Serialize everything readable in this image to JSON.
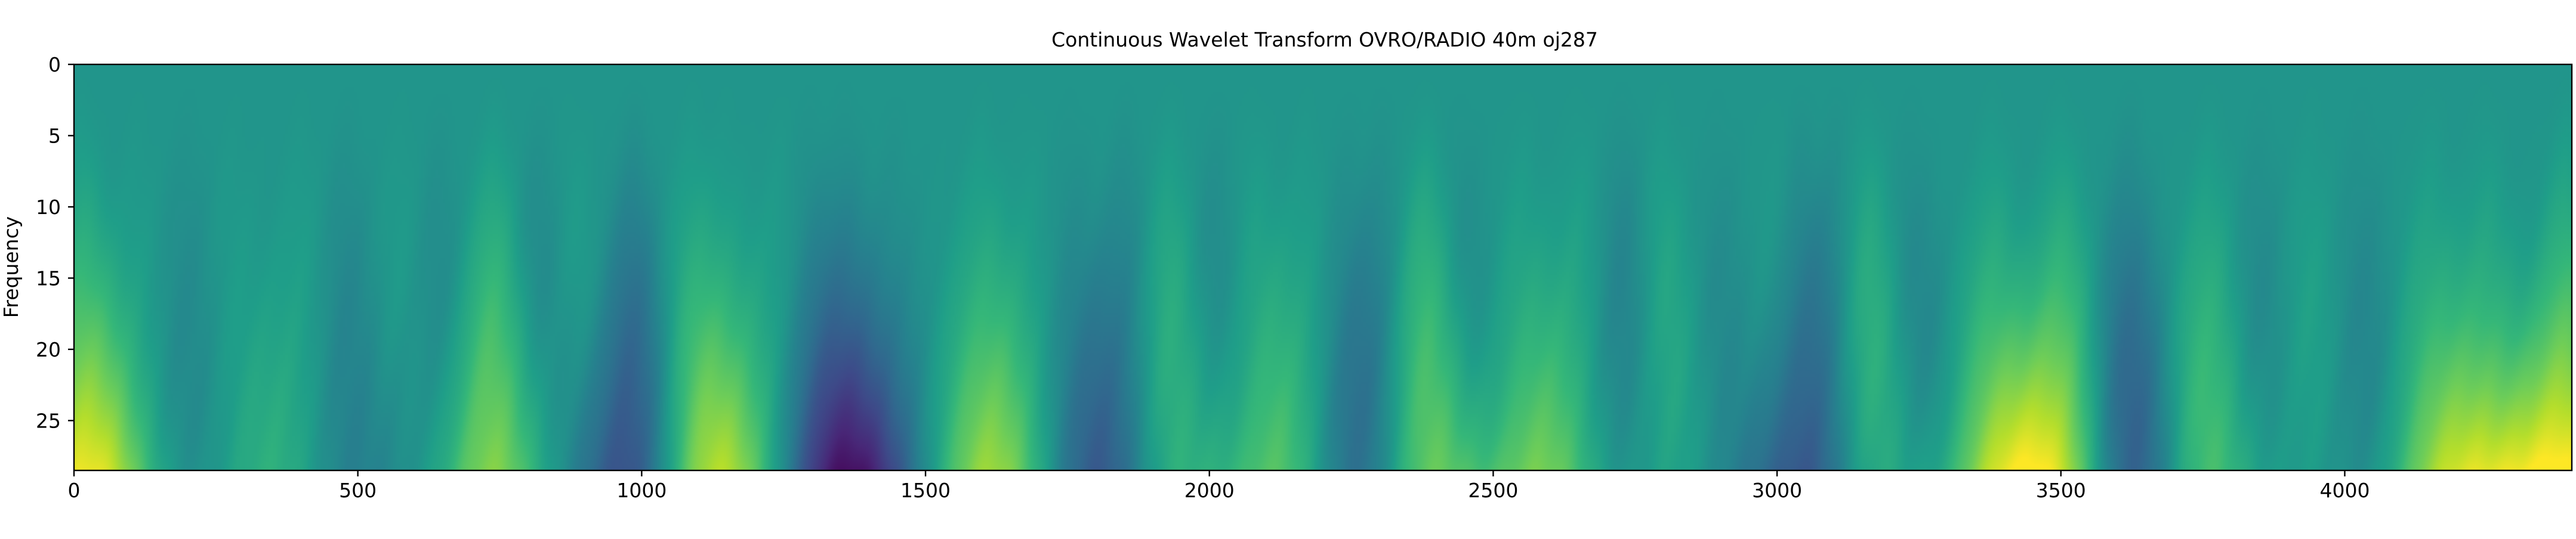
{
  "chart_data": {
    "type": "heatmap",
    "title": "Continuous Wavelet Transform OVRO/RADIO 40m oj287",
    "xlabel": "",
    "ylabel": "Frequency",
    "xlim": [
      0,
      4400
    ],
    "ylim": [
      0,
      28.5
    ],
    "y_inverted": true,
    "x_ticks": [
      0,
      500,
      1000,
      1500,
      2000,
      2500,
      3000,
      3500,
      4000
    ],
    "y_ticks": [
      0,
      5,
      10,
      15,
      20,
      25
    ],
    "colormap": "viridis",
    "grid": false,
    "colorbar": false,
    "features": [
      {
        "x": 15,
        "sign": 1,
        "amp": 0.9
      },
      {
        "x": 110,
        "sign": 1,
        "amp": 0.25
      },
      {
        "x": 200,
        "sign": -1,
        "amp": 0.3
      },
      {
        "x": 280,
        "sign": 1,
        "amp": 0.2
      },
      {
        "x": 400,
        "sign": 1,
        "amp": 0.3
      },
      {
        "x": 480,
        "sign": -1,
        "amp": 0.4
      },
      {
        "x": 580,
        "sign": 1,
        "amp": 0.25
      },
      {
        "x": 640,
        "sign": -1,
        "amp": 0.35
      },
      {
        "x": 740,
        "sign": 1,
        "amp": 0.95
      },
      {
        "x": 820,
        "sign": -1,
        "amp": 0.45
      },
      {
        "x": 880,
        "sign": 1,
        "amp": 0.3
      },
      {
        "x": 985,
        "sign": -1,
        "amp": 0.85
      },
      {
        "x": 1090,
        "sign": 1,
        "amp": 0.6
      },
      {
        "x": 1150,
        "sign": 1,
        "amp": 0.35
      },
      {
        "x": 1240,
        "sign": 1,
        "amp": 0.3
      },
      {
        "x": 1300,
        "sign": -1,
        "amp": 0.45
      },
      {
        "x": 1360,
        "sign": -1,
        "amp": 0.65
      },
      {
        "x": 1440,
        "sign": -1,
        "amp": 0.3
      },
      {
        "x": 1600,
        "sign": 1,
        "amp": 0.6
      },
      {
        "x": 1680,
        "sign": 1,
        "amp": 0.3
      },
      {
        "x": 1760,
        "sign": -1,
        "amp": 0.35
      },
      {
        "x": 1850,
        "sign": -1,
        "amp": 0.55
      },
      {
        "x": 1930,
        "sign": 1,
        "amp": 0.7
      },
      {
        "x": 2010,
        "sign": -1,
        "amp": 0.4
      },
      {
        "x": 2080,
        "sign": 1,
        "amp": 0.45
      },
      {
        "x": 2170,
        "sign": 1,
        "amp": 0.35
      },
      {
        "x": 2240,
        "sign": -1,
        "amp": 0.35
      },
      {
        "x": 2300,
        "sign": -1,
        "amp": 0.45
      },
      {
        "x": 2380,
        "sign": 1,
        "amp": 0.95
      },
      {
        "x": 2450,
        "sign": -1,
        "amp": 0.3
      },
      {
        "x": 2550,
        "sign": 1,
        "amp": 0.45
      },
      {
        "x": 2650,
        "sign": 1,
        "amp": 0.45
      },
      {
        "x": 2730,
        "sign": -1,
        "amp": 0.6
      },
      {
        "x": 2800,
        "sign": 1,
        "amp": 0.55
      },
      {
        "x": 2900,
        "sign": -1,
        "amp": 0.3
      },
      {
        "x": 3000,
        "sign": 1,
        "amp": 0.3
      },
      {
        "x": 3040,
        "sign": -1,
        "amp": 0.6
      },
      {
        "x": 3100,
        "sign": -1,
        "amp": 0.5
      },
      {
        "x": 3160,
        "sign": 1,
        "amp": 0.85
      },
      {
        "x": 3240,
        "sign": -1,
        "amp": 0.4
      },
      {
        "x": 3380,
        "sign": 1,
        "amp": 0.7
      },
      {
        "x": 3500,
        "sign": 1,
        "amp": 0.9
      },
      {
        "x": 3620,
        "sign": -1,
        "amp": 0.75
      },
      {
        "x": 3760,
        "sign": 1,
        "amp": 0.65
      },
      {
        "x": 3850,
        "sign": -1,
        "amp": 0.35
      },
      {
        "x": 3940,
        "sign": 1,
        "amp": 0.35
      },
      {
        "x": 4030,
        "sign": -1,
        "amp": 0.35
      },
      {
        "x": 4150,
        "sign": 1,
        "amp": 0.55
      },
      {
        "x": 4250,
        "sign": 1,
        "amp": 0.6
      },
      {
        "x": 4390,
        "sign": 1,
        "amp": 1.0
      }
    ]
  }
}
